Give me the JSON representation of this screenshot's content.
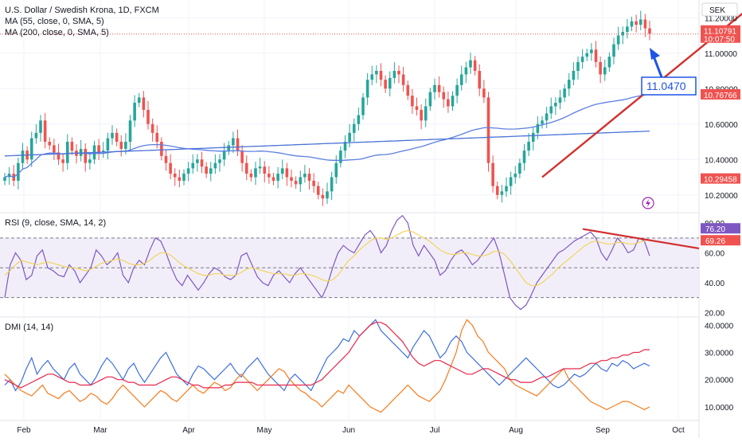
{
  "header": {
    "title": "U.S. Dollar / Swedish Krona, 1D, FXCM",
    "indicators": [
      "MA (55, close, 0, SMA, 5)",
      "MA (200, close, 0, SMA, 5)"
    ]
  },
  "colors": {
    "up": "#26a69a",
    "down": "#ef5350",
    "ma55": "#5b7ee0",
    "ma200": "#4a72d6",
    "trend": "#d32f2f",
    "rsi": "#7e57c2",
    "rsi_ma": "#f2d45c",
    "rsi_band": "#ede7f6",
    "di_plus": "#3d6fe0",
    "di_minus": "#f57c1f",
    "adx": "#e8264a",
    "grid": "#f0f3fa",
    "axis_text": "#131722",
    "callout": "#1e53e5"
  },
  "chart_data": [
    {
      "type": "candlestick",
      "pane": "price",
      "title": "U.S. Dollar / Swedish Krona, 1D, FXCM",
      "currency_label": "SEK",
      "x_months": [
        "Feb",
        "Mar",
        "Apr",
        "May",
        "Jun",
        "Jul",
        "Aug",
        "Sep",
        "Oct"
      ],
      "y_ticks": [
        "11.20000",
        "11.00000",
        "10.80000",
        "10.60000",
        "10.40000",
        "10.20000"
      ],
      "ylim": [
        10.1,
        11.3
      ],
      "candles_approx_close": [
        10.3,
        10.32,
        10.28,
        10.38,
        10.45,
        10.4,
        10.52,
        10.55,
        10.62,
        10.5,
        10.48,
        10.44,
        10.4,
        10.38,
        10.5,
        10.45,
        10.42,
        10.46,
        10.38,
        10.4,
        10.48,
        10.44,
        10.45,
        10.52,
        10.55,
        10.5,
        10.46,
        10.5,
        10.62,
        10.72,
        10.75,
        10.68,
        10.6,
        10.55,
        10.5,
        10.42,
        10.38,
        10.32,
        10.3,
        10.28,
        10.32,
        10.35,
        10.38,
        10.4,
        10.36,
        10.32,
        10.35,
        10.38,
        10.4,
        10.45,
        10.48,
        10.52,
        10.45,
        10.38,
        10.32,
        10.3,
        10.35,
        10.36,
        10.32,
        10.3,
        10.28,
        10.32,
        10.35,
        10.3,
        10.28,
        10.26,
        10.3,
        10.32,
        10.28,
        10.25,
        10.2,
        10.18,
        10.22,
        10.3,
        10.38,
        10.45,
        10.5,
        10.55,
        10.6,
        10.65,
        10.75,
        10.85,
        10.88,
        10.9,
        10.85,
        10.8,
        10.86,
        10.9,
        10.88,
        10.82,
        10.76,
        10.7,
        10.68,
        10.62,
        10.7,
        10.78,
        10.82,
        10.78,
        10.74,
        10.7,
        10.76,
        10.82,
        10.88,
        10.92,
        10.96,
        10.9,
        10.8,
        10.75,
        10.38,
        10.25,
        10.2,
        10.22,
        10.25,
        10.3,
        10.32,
        10.38,
        10.45,
        10.5,
        10.55,
        10.6,
        10.62,
        10.66,
        10.7,
        10.72,
        10.75,
        10.8,
        10.85,
        10.9,
        10.95,
        10.98,
        11.0,
        11.02,
        10.95,
        10.88,
        10.92,
        10.98,
        11.05,
        11.1,
        11.12,
        11.15,
        11.18,
        11.16,
        11.19,
        11.14,
        11.11
      ],
      "last_price": "11.10791",
      "countdown": "10:07:50",
      "ma55_last": "10.76766",
      "ma200_last": "10.29458",
      "trendline_from": {
        "date_index": 120,
        "value": 10.3
      },
      "trendline_to": {
        "date_index": 166,
        "value": 11.25
      },
      "callout_value": "11.0470"
    },
    {
      "type": "line",
      "pane": "rsi",
      "title": "RSI (9, close, SMA, 14, 2)",
      "y_ticks": [
        "80.00",
        "60.00",
        "40.00",
        "20.00"
      ],
      "ylim": [
        17,
        87
      ],
      "band": [
        30,
        70
      ],
      "midline": 50,
      "last_rsi": "76.20",
      "last_rsi_ma": "69.26",
      "series": [
        {
          "name": "RSI",
          "values": [
            30,
            52,
            60,
            55,
            42,
            45,
            58,
            62,
            50,
            48,
            45,
            44,
            52,
            48,
            40,
            45,
            50,
            62,
            58,
            52,
            55,
            60,
            45,
            40,
            50,
            55,
            52,
            62,
            70,
            68,
            60,
            50,
            42,
            38,
            45,
            40,
            35,
            40,
            46,
            50,
            48,
            44,
            42,
            45,
            58,
            60,
            52,
            44,
            40,
            38,
            45,
            48,
            44,
            40,
            46,
            50,
            45,
            40,
            35,
            30,
            38,
            50,
            60,
            65,
            62,
            60,
            66,
            72,
            75,
            70,
            60,
            65,
            75,
            82,
            85,
            80,
            65,
            58,
            65,
            60,
            55,
            45,
            48,
            55,
            60,
            62,
            58,
            52,
            55,
            60,
            65,
            70,
            60,
            45,
            30,
            25,
            22,
            25,
            32,
            40,
            45,
            50,
            55,
            60,
            62,
            65,
            68,
            70,
            72,
            74,
            70,
            60,
            55,
            62,
            70,
            66,
            60,
            62,
            70,
            68,
            58
          ],
          "color_key": "rsi"
        },
        {
          "name": "RSI SMA",
          "values": [
            45,
            48,
            52,
            55,
            54,
            53,
            52,
            53,
            54,
            53,
            52,
            51,
            50,
            50,
            49,
            48,
            49,
            51,
            53,
            54,
            55,
            56,
            55,
            53,
            52,
            52,
            53,
            55,
            58,
            60,
            60,
            58,
            55,
            52,
            50,
            48,
            46,
            45,
            45,
            46,
            46,
            45,
            45,
            45,
            47,
            49,
            50,
            49,
            48,
            47,
            46,
            46,
            46,
            45,
            45,
            46,
            46,
            45,
            44,
            42,
            41,
            42,
            45,
            50,
            55,
            58,
            62,
            65,
            68,
            70,
            70,
            69,
            70,
            72,
            74,
            75,
            74,
            72,
            70,
            68,
            65,
            62,
            60,
            59,
            59,
            60,
            60,
            59,
            58,
            58,
            59,
            61,
            61,
            59,
            55,
            50,
            45,
            40,
            38,
            38,
            40,
            43,
            46,
            50,
            53,
            56,
            59,
            62,
            65,
            67,
            68,
            67,
            66,
            66,
            67,
            67,
            66,
            66,
            67,
            68,
            69
          ],
          "color_key": "rsi_ma"
        }
      ],
      "trendline_from": {
        "index": 122,
        "value": 76
      },
      "trendline_to": {
        "index": 175,
        "value": 63
      }
    },
    {
      "type": "line",
      "pane": "dmi",
      "title": "DMI (14, 14)",
      "y_ticks": [
        "40.0000",
        "30.0000",
        "20.0000",
        "10.0000"
      ],
      "ylim": [
        5,
        43
      ],
      "series": [
        {
          "name": "+DI",
          "values": [
            18,
            20,
            16,
            19,
            24,
            28,
            22,
            25,
            27,
            24,
            22,
            20,
            24,
            26,
            22,
            20,
            18,
            21,
            25,
            28,
            26,
            23,
            20,
            24,
            26,
            22,
            19,
            22,
            25,
            28,
            30,
            26,
            22,
            20,
            18,
            22,
            25,
            24,
            22,
            20,
            22,
            24,
            26,
            23,
            21,
            24,
            26,
            28,
            25,
            22,
            20,
            18,
            16,
            20,
            22,
            20,
            18,
            16,
            20,
            24,
            28,
            30,
            32,
            35,
            34,
            38,
            36,
            38,
            40,
            42,
            38,
            36,
            34,
            32,
            30,
            28,
            32,
            35,
            38,
            36,
            32,
            28,
            30,
            34,
            36,
            34,
            30,
            28,
            26,
            24,
            22,
            20,
            18,
            20,
            22,
            24,
            26,
            28,
            26,
            24,
            22,
            20,
            18,
            17,
            18,
            20,
            22,
            21,
            22,
            24,
            26,
            24,
            23,
            26,
            25,
            27,
            26,
            24,
            25,
            26,
            25
          ],
          "color_key": "di_plus"
        },
        {
          "name": "-DI",
          "values": [
            22,
            20,
            18,
            16,
            15,
            14,
            16,
            18,
            15,
            14,
            13,
            15,
            16,
            14,
            12,
            13,
            15,
            14,
            12,
            11,
            13,
            16,
            18,
            16,
            14,
            12,
            10,
            12,
            14,
            16,
            15,
            13,
            12,
            14,
            16,
            18,
            16,
            15,
            17,
            19,
            18,
            16,
            17,
            20,
            22,
            20,
            18,
            16,
            18,
            20,
            22,
            24,
            23,
            20,
            18,
            16,
            15,
            13,
            12,
            10,
            12,
            14,
            16,
            15,
            18,
            16,
            14,
            12,
            10,
            9,
            8,
            10,
            12,
            14,
            16,
            18,
            16,
            14,
            13,
            12,
            14,
            16,
            20,
            25,
            30,
            38,
            42,
            40,
            36,
            34,
            30,
            28,
            26,
            24,
            20,
            18,
            17,
            16,
            15,
            14,
            16,
            18,
            20,
            22,
            24,
            20,
            18,
            16,
            14,
            12,
            11,
            10,
            9,
            10,
            11,
            12,
            12,
            11,
            10,
            9,
            10
          ],
          "color_key": "di_minus"
        },
        {
          "name": "ADX",
          "values": [
            20,
            19,
            18,
            17,
            18,
            19,
            20,
            21,
            22,
            22,
            21,
            20,
            19,
            19,
            18,
            18,
            18,
            19,
            20,
            21,
            21,
            20,
            20,
            19,
            19,
            18,
            18,
            18,
            18,
            19,
            20,
            21,
            21,
            20,
            19,
            18,
            18,
            17,
            17,
            17,
            17,
            18,
            18,
            19,
            19,
            19,
            19,
            18,
            18,
            18,
            18,
            18,
            18,
            18,
            18,
            18,
            18,
            18,
            19,
            20,
            22,
            24,
            26,
            28,
            30,
            33,
            36,
            38,
            40,
            41,
            41,
            40,
            38,
            36,
            34,
            31,
            28,
            26,
            25,
            26,
            27,
            27,
            26,
            25,
            24,
            23,
            22,
            22,
            23,
            24,
            24,
            23,
            22,
            21,
            20,
            20,
            19,
            19,
            19,
            20,
            21,
            21,
            22,
            23,
            24,
            24,
            24,
            24,
            25,
            26,
            26,
            27,
            27,
            28,
            28,
            29,
            29,
            30,
            30,
            31,
            31
          ],
          "color_key": "adx"
        }
      ]
    }
  ]
}
